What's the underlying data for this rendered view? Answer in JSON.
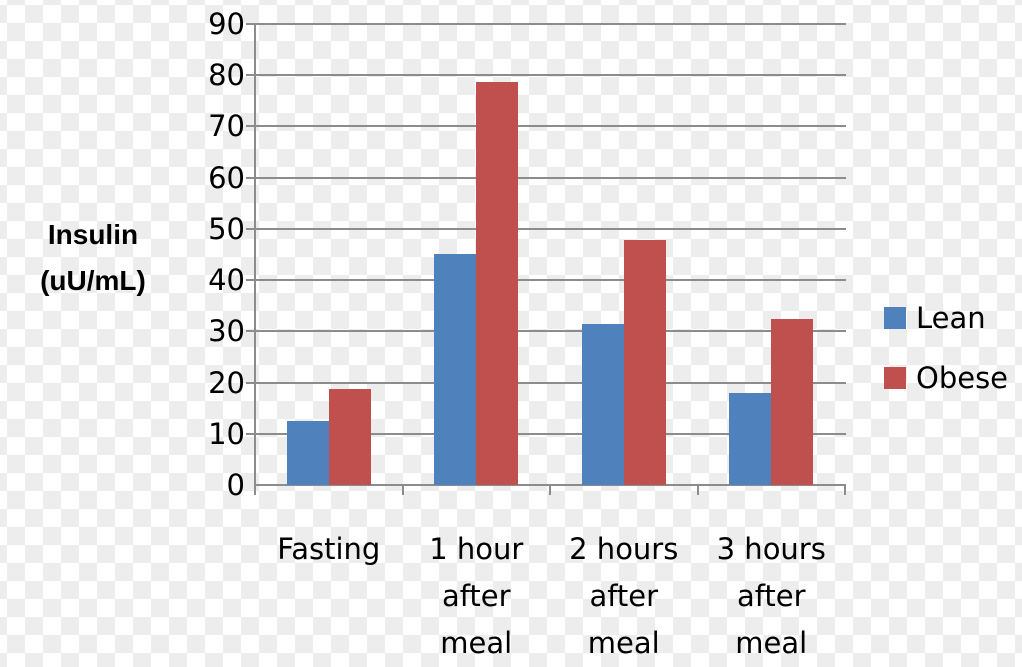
{
  "chart_data": {
    "type": "bar",
    "title": "",
    "xlabel": "",
    "ylabel": "Insulin (uU/mL)",
    "ylabel_lines": [
      "Insulin",
      "(uU/mL)"
    ],
    "ylim": [
      0,
      90
    ],
    "yticks": [
      0,
      10,
      20,
      30,
      40,
      50,
      60,
      70,
      80,
      90
    ],
    "grid": true,
    "legend_position": "right",
    "categories": [
      "Fasting",
      "1 hour after meal",
      "2 hours after meal",
      "3 hours after meal"
    ],
    "category_lines": [
      [
        "Fasting"
      ],
      [
        "1 hour",
        "after",
        "meal"
      ],
      [
        "2 hours",
        "after",
        "meal"
      ],
      [
        "3 hours",
        "after",
        "meal"
      ]
    ],
    "series": [
      {
        "name": "Lean",
        "color": "#4f81bd",
        "values": [
          12.5,
          45.1,
          31.4,
          18.0
        ]
      },
      {
        "name": "Obese",
        "color": "#c0504d",
        "values": [
          18.7,
          78.7,
          47.9,
          32.4
        ]
      }
    ]
  },
  "legend": {
    "items": [
      {
        "label": "Lean",
        "color": "#4f81bd"
      },
      {
        "label": "Obese",
        "color": "#c0504d"
      }
    ]
  }
}
